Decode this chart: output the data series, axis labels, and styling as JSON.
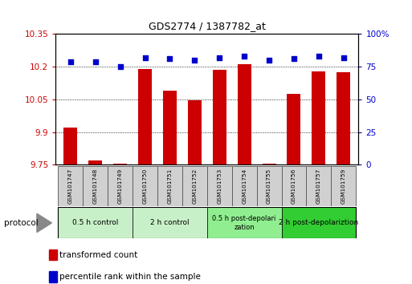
{
  "title": "GDS2774 / 1387782_at",
  "samples": [
    "GSM101747",
    "GSM101748",
    "GSM101749",
    "GSM101750",
    "GSM101751",
    "GSM101752",
    "GSM101753",
    "GSM101754",
    "GSM101755",
    "GSM101756",
    "GSM101757",
    "GSM101759"
  ],
  "bar_values": [
    9.92,
    9.77,
    9.755,
    10.19,
    10.09,
    10.045,
    10.185,
    10.21,
    9.755,
    10.075,
    10.18,
    10.175
  ],
  "dot_values": [
    79,
    79,
    75,
    82,
    81,
    80,
    82,
    83,
    80,
    81,
    83,
    82
  ],
  "bar_color": "#cc0000",
  "dot_color": "#0000cc",
  "ylim_left": [
    9.75,
    10.35
  ],
  "ylim_right": [
    0,
    100
  ],
  "yticks_left": [
    9.75,
    9.9,
    10.05,
    10.2,
    10.35
  ],
  "yticks_right": [
    0,
    25,
    50,
    75,
    100
  ],
  "ytick_labels_left": [
    "9.75",
    "9.9",
    "10.05",
    "10.2",
    "10.35"
  ],
  "ytick_labels_right": [
    "0",
    "25",
    "50",
    "75",
    "100%"
  ],
  "groups": [
    {
      "label": "0.5 h control",
      "start": 0,
      "end": 3,
      "color": "#c8f0c8",
      "label_wrap": false
    },
    {
      "label": "2 h control",
      "start": 3,
      "end": 6,
      "color": "#c8f0c8",
      "label_wrap": false
    },
    {
      "label": "0.5 h post-depolarization",
      "start": 6,
      "end": 9,
      "color": "#90ee90",
      "label_wrap": true,
      "line1": "0.5 h post-depolari",
      "line2": "zation"
    },
    {
      "label": "2 h post-depolariztion",
      "start": 9,
      "end": 12,
      "color": "#32cd32",
      "label_wrap": false
    }
  ],
  "protocol_label": "protocol",
  "legend_items": [
    {
      "label": "transformed count",
      "color": "#cc0000"
    },
    {
      "label": "percentile rank within the sample",
      "color": "#0000cc"
    }
  ],
  "bar_width": 0.55,
  "baseline": 9.75
}
